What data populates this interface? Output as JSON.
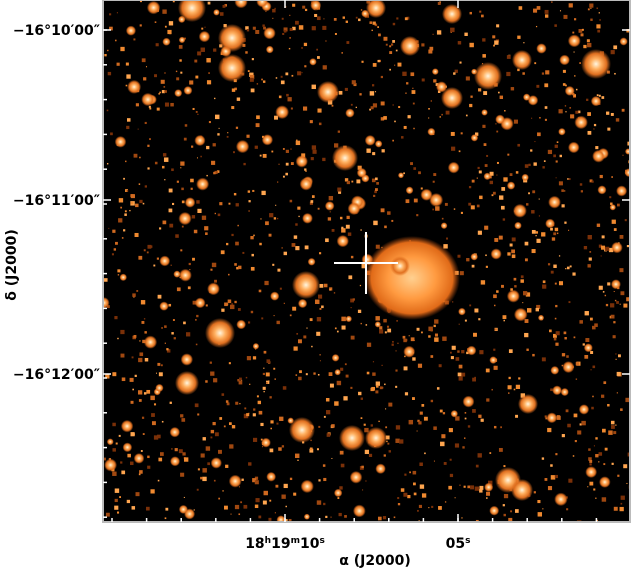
{
  "y_axis": {
    "label": "δ (J2000)",
    "ticks": [
      "−16°10′00″",
      "−16°11′00″",
      "−16°12′00″"
    ]
  },
  "x_axis": {
    "label": "α (J2000)",
    "ticks": [
      {
        "segments": [
          "18",
          "h",
          "19",
          "m",
          "10",
          "s"
        ]
      },
      {
        "segments": [
          "05",
          "s"
        ]
      }
    ]
  }
}
